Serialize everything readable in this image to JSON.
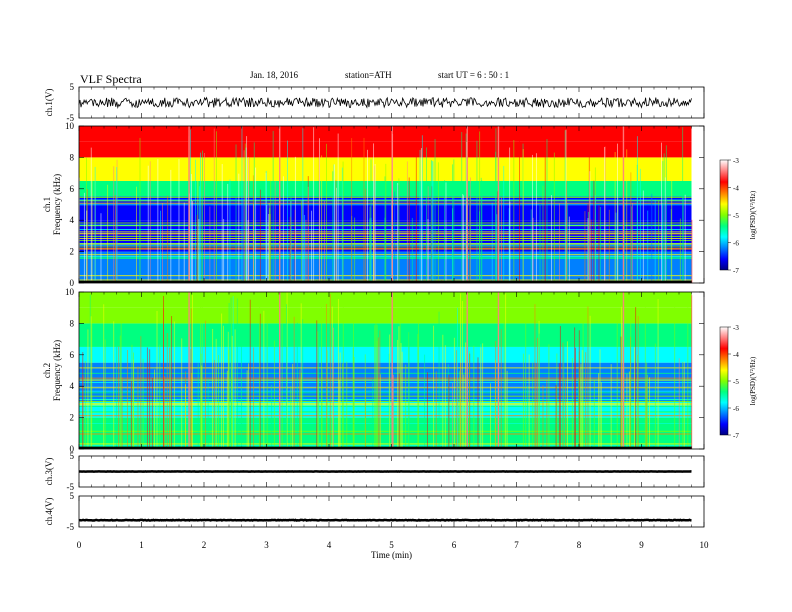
{
  "header": {
    "title": "VLF  Spectra",
    "date": "Jan. 18, 2016",
    "station": "station=ATH",
    "start": "start  UT  =   6  : 50 : 1"
  },
  "chart_data": {
    "type": "heatmap",
    "x_axis": {
      "label": "Time  (min)",
      "range": [
        0,
        10
      ],
      "ticks": [
        "0",
        "1",
        "2",
        "3",
        "4",
        "5",
        "6",
        "7",
        "8",
        "9",
        "10"
      ]
    },
    "panels": [
      {
        "id": "ch1_waveform",
        "type": "line",
        "ylabel": "ch.1(V)",
        "ylim": [
          -5,
          5
        ],
        "yticks": [
          "5",
          "-5"
        ]
      },
      {
        "id": "ch1_spectrogram",
        "type": "heatmap",
        "ylabel_line1": "ch.1",
        "ylabel_line2": "Frequency  (kHz)",
        "ylim": [
          0,
          10
        ],
        "yticks": [
          "0",
          "2",
          "4",
          "6",
          "8",
          "10"
        ]
      },
      {
        "id": "ch2_spectrogram",
        "type": "heatmap",
        "ylabel_line1": "ch.2",
        "ylabel_line2": "Frequency  (kHz)",
        "ylim": [
          0,
          10
        ],
        "yticks": [
          "0",
          "2",
          "4",
          "6",
          "8",
          "10"
        ]
      },
      {
        "id": "ch3_waveform",
        "type": "line",
        "ylabel": "ch.3(V)",
        "ylim": [
          -5,
          5
        ],
        "yticks": [
          "5",
          "-5"
        ]
      },
      {
        "id": "ch4_waveform",
        "type": "line",
        "ylabel": "ch.4(V)",
        "ylim": [
          -5,
          5
        ],
        "yticks": [
          "5",
          "-5"
        ]
      }
    ],
    "colorbar": {
      "label": "log(PSD)(V²/Hz)",
      "range": [
        -7,
        -3
      ],
      "ticks": [
        "-3",
        "-4",
        "-5",
        "-6",
        "-7"
      ],
      "colors": [
        "#000080",
        "#0000ff",
        "#0080ff",
        "#00ffff",
        "#00ff80",
        "#80ff00",
        "#ffff00",
        "#ff8000",
        "#ff0000",
        "#ff8080",
        "#ffffff"
      ]
    },
    "spectrogram_profile": {
      "band_boundaries_khz": [
        2.0,
        3.0,
        4.0,
        5.5,
        6.5,
        8.0,
        9.0
      ],
      "ch1_band_levels": [
        -6.2,
        -6.6,
        -6.8,
        -6.6,
        -5.3,
        -4.6,
        -4.0,
        -3.7
      ],
      "ch2_band_levels": [
        -5.6,
        -5.8,
        -6.3,
        -6.1,
        -6.0,
        -5.6,
        -5.2,
        -5.0
      ]
    },
    "spectrogram_time_end_min": 9.8,
    "strong_burst_times_min": [
      1.75,
      3.2,
      5.0,
      6.2,
      6.7,
      8.7
    ],
    "ch1_waveform_mean_v": 0.0,
    "ch3_waveform_mean_v": 0.0,
    "ch4_waveform_mean_v": -2.8,
    "grid": false
  }
}
